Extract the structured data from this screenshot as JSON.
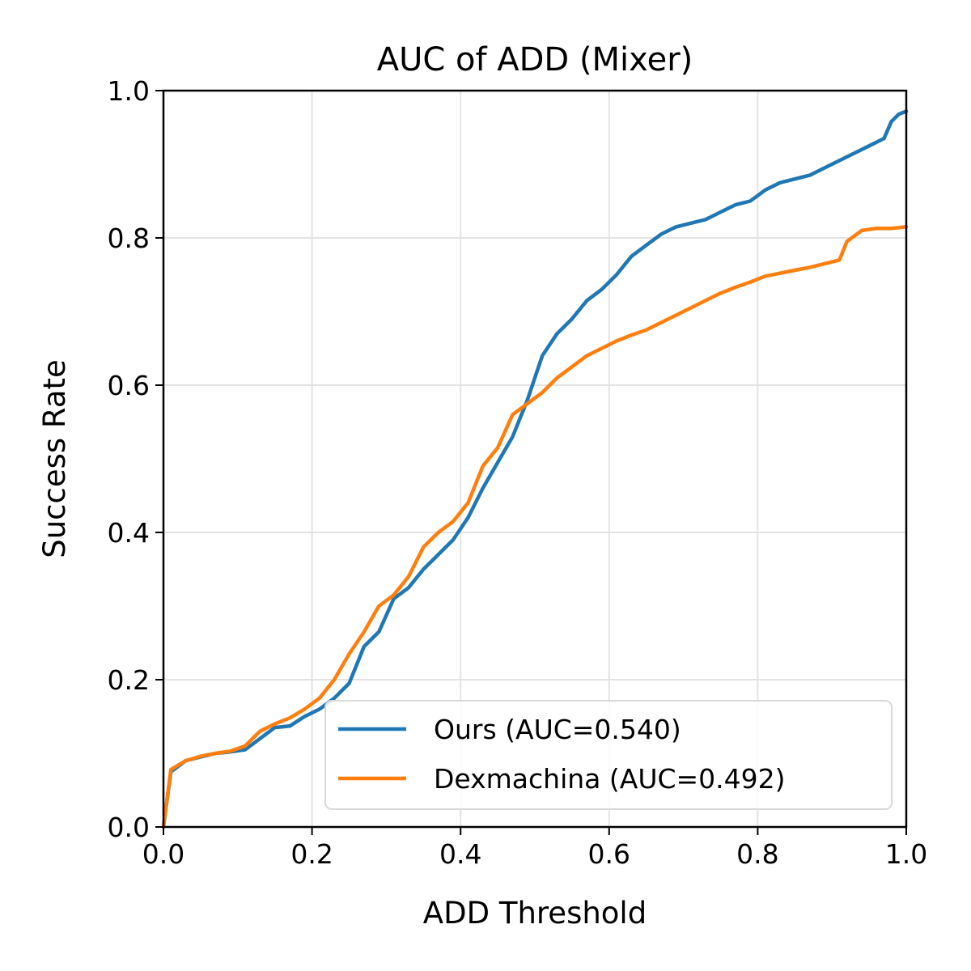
{
  "chart_data": {
    "type": "line",
    "title": "AUC of ADD (Mixer)",
    "xlabel": "ADD Threshold",
    "ylabel": "Success Rate",
    "xlim": [
      0.0,
      1.0
    ],
    "ylim": [
      0.0,
      1.0
    ],
    "xticks": [
      "0.0",
      "0.2",
      "0.4",
      "0.6",
      "0.8",
      "1.0"
    ],
    "yticks": [
      "0.0",
      "0.2",
      "0.4",
      "0.6",
      "0.8",
      "1.0"
    ],
    "grid": true,
    "legend_position": "lower-right",
    "series": [
      {
        "name": "Ours (AUC=0.540)",
        "color": "#1f77b4",
        "points": [
          [
            0,
            0
          ],
          [
            0.01,
            0.075
          ],
          [
            0.03,
            0.09
          ],
          [
            0.05,
            0.095
          ],
          [
            0.07,
            0.1
          ],
          [
            0.09,
            0.102
          ],
          [
            0.11,
            0.105
          ],
          [
            0.13,
            0.12
          ],
          [
            0.15,
            0.135
          ],
          [
            0.17,
            0.137
          ],
          [
            0.19,
            0.15
          ],
          [
            0.21,
            0.16
          ],
          [
            0.23,
            0.175
          ],
          [
            0.25,
            0.195
          ],
          [
            0.27,
            0.245
          ],
          [
            0.29,
            0.265
          ],
          [
            0.31,
            0.31
          ],
          [
            0.33,
            0.325
          ],
          [
            0.35,
            0.35
          ],
          [
            0.37,
            0.37
          ],
          [
            0.39,
            0.39
          ],
          [
            0.41,
            0.42
          ],
          [
            0.43,
            0.46
          ],
          [
            0.45,
            0.495
          ],
          [
            0.47,
            0.53
          ],
          [
            0.49,
            0.58
          ],
          [
            0.51,
            0.64
          ],
          [
            0.53,
            0.67
          ],
          [
            0.55,
            0.69
          ],
          [
            0.57,
            0.715
          ],
          [
            0.59,
            0.73
          ],
          [
            0.61,
            0.75
          ],
          [
            0.63,
            0.775
          ],
          [
            0.65,
            0.79
          ],
          [
            0.67,
            0.805
          ],
          [
            0.69,
            0.815
          ],
          [
            0.71,
            0.82
          ],
          [
            0.73,
            0.825
          ],
          [
            0.75,
            0.835
          ],
          [
            0.77,
            0.845
          ],
          [
            0.79,
            0.85
          ],
          [
            0.81,
            0.865
          ],
          [
            0.83,
            0.875
          ],
          [
            0.85,
            0.88
          ],
          [
            0.87,
            0.885
          ],
          [
            0.89,
            0.895
          ],
          [
            0.91,
            0.905
          ],
          [
            0.93,
            0.915
          ],
          [
            0.95,
            0.925
          ],
          [
            0.97,
            0.935
          ],
          [
            0.98,
            0.958
          ],
          [
            0.99,
            0.968
          ],
          [
            1.0,
            0.972
          ]
        ]
      },
      {
        "name": "Dexmachina (AUC=0.492)",
        "color": "#ff7f0e",
        "points": [
          [
            0,
            0
          ],
          [
            0.01,
            0.078
          ],
          [
            0.03,
            0.09
          ],
          [
            0.05,
            0.096
          ],
          [
            0.07,
            0.1
          ],
          [
            0.09,
            0.103
          ],
          [
            0.11,
            0.11
          ],
          [
            0.13,
            0.13
          ],
          [
            0.15,
            0.14
          ],
          [
            0.17,
            0.148
          ],
          [
            0.19,
            0.16
          ],
          [
            0.21,
            0.175
          ],
          [
            0.23,
            0.2
          ],
          [
            0.25,
            0.235
          ],
          [
            0.27,
            0.265
          ],
          [
            0.29,
            0.3
          ],
          [
            0.31,
            0.315
          ],
          [
            0.33,
            0.34
          ],
          [
            0.35,
            0.38
          ],
          [
            0.37,
            0.4
          ],
          [
            0.39,
            0.415
          ],
          [
            0.41,
            0.44
          ],
          [
            0.43,
            0.49
          ],
          [
            0.45,
            0.515
          ],
          [
            0.47,
            0.56
          ],
          [
            0.49,
            0.575
          ],
          [
            0.51,
            0.59
          ],
          [
            0.53,
            0.61
          ],
          [
            0.55,
            0.625
          ],
          [
            0.57,
            0.64
          ],
          [
            0.59,
            0.65
          ],
          [
            0.61,
            0.66
          ],
          [
            0.63,
            0.668
          ],
          [
            0.65,
            0.675
          ],
          [
            0.67,
            0.685
          ],
          [
            0.69,
            0.695
          ],
          [
            0.71,
            0.705
          ],
          [
            0.73,
            0.715
          ],
          [
            0.75,
            0.725
          ],
          [
            0.77,
            0.733
          ],
          [
            0.79,
            0.74
          ],
          [
            0.81,
            0.748
          ],
          [
            0.83,
            0.752
          ],
          [
            0.85,
            0.756
          ],
          [
            0.87,
            0.76
          ],
          [
            0.89,
            0.765
          ],
          [
            0.91,
            0.77
          ],
          [
            0.92,
            0.795
          ],
          [
            0.94,
            0.81
          ],
          [
            0.96,
            0.813
          ],
          [
            0.98,
            0.813
          ],
          [
            1.0,
            0.815
          ]
        ]
      }
    ]
  }
}
